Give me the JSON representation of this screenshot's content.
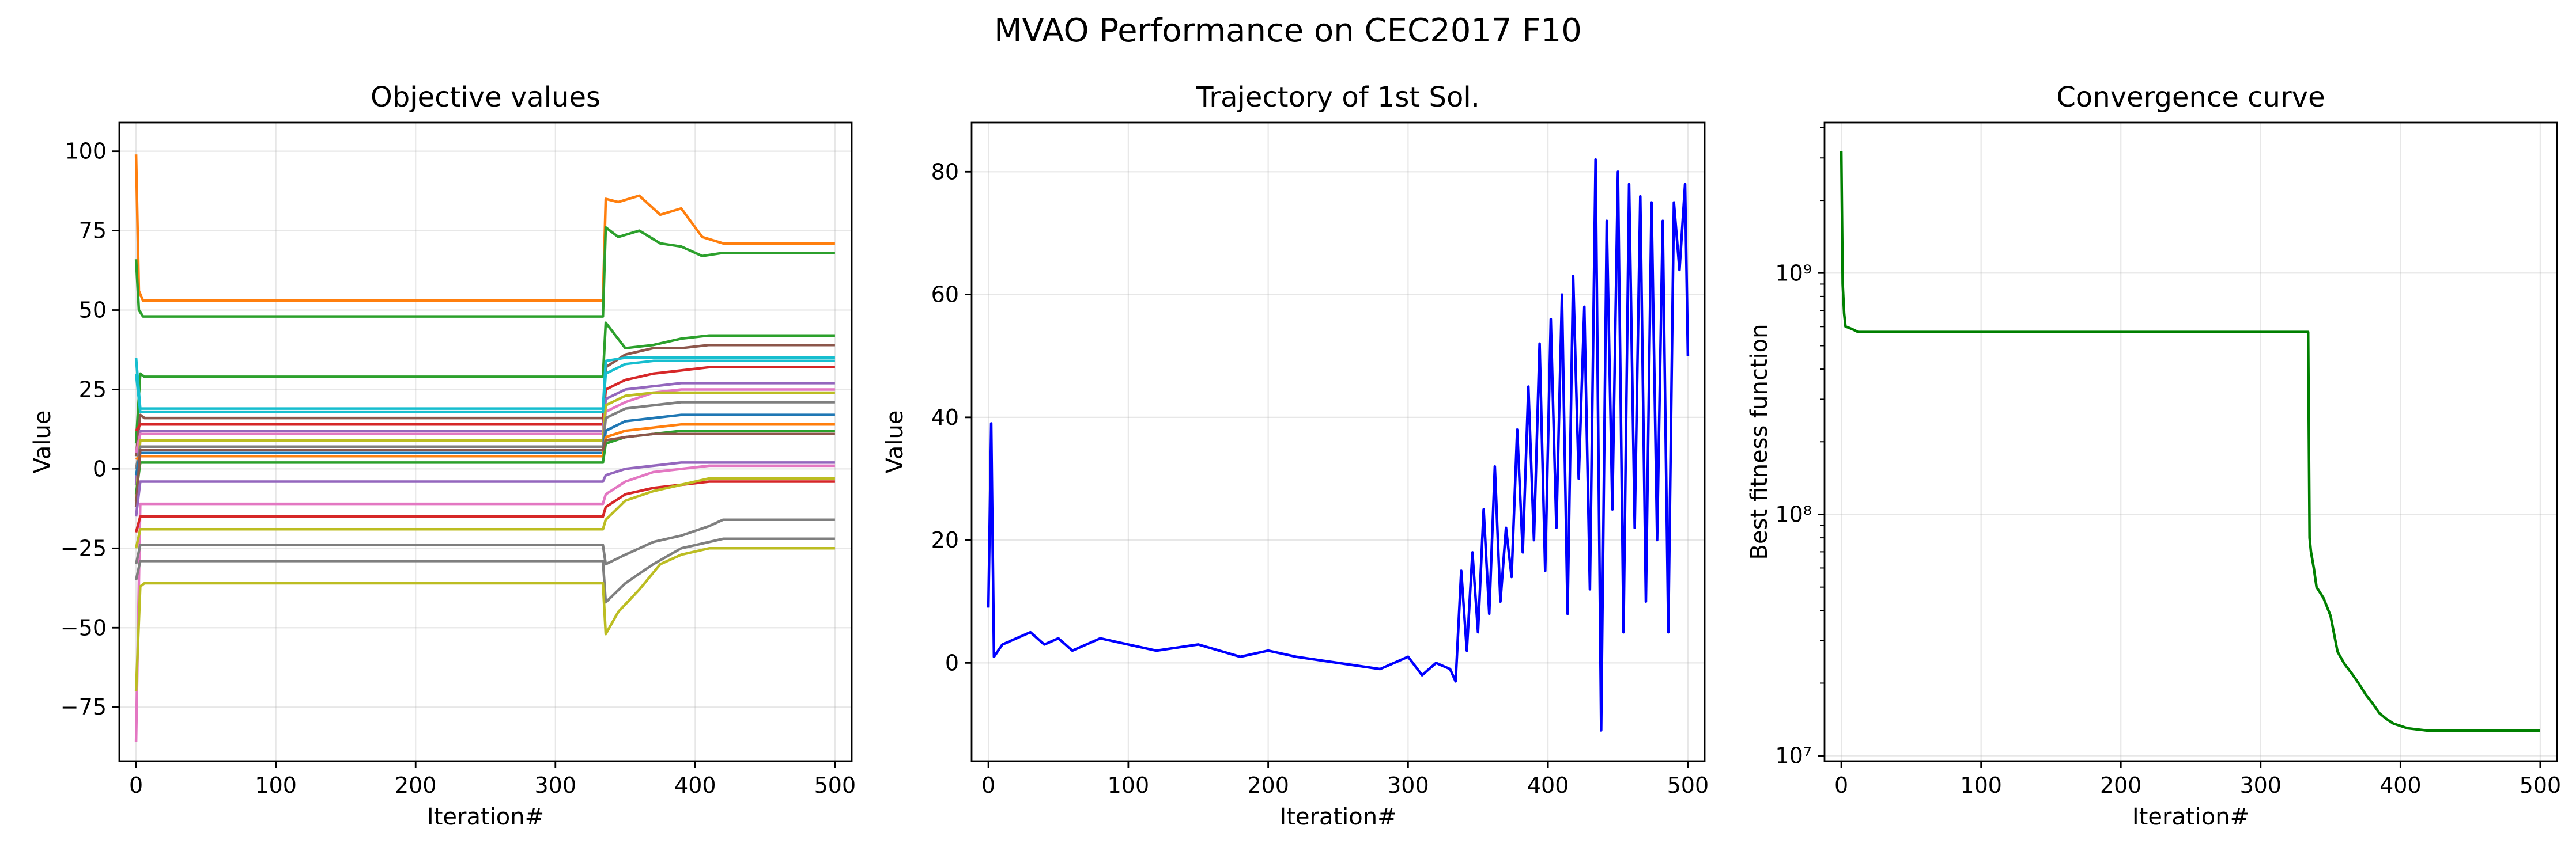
{
  "figure": {
    "title": "MVAO Performance on CEC2017 F10"
  },
  "chart_data": [
    {
      "type": "line",
      "title": "Objective values",
      "xlabel": "Iteration#",
      "ylabel": "Value",
      "xlim": [
        -12,
        512
      ],
      "ylim": [
        -92,
        109
      ],
      "xticks": [
        0,
        100,
        200,
        300,
        400,
        500
      ],
      "xtick_labels": [
        "0",
        "100",
        "200",
        "300",
        "400",
        "500"
      ],
      "yticks": [
        -75,
        -50,
        -25,
        0,
        25,
        50,
        75,
        100
      ],
      "ytick_labels": [
        "−75",
        "−50",
        "−25",
        "0",
        "25",
        "50",
        "75",
        "100"
      ],
      "grid": true,
      "legend": "none",
      "series": [
        {
          "color": "#ff7f0e",
          "x": [
            0,
            2,
            5,
            334,
            336,
            345,
            360,
            375,
            390,
            405,
            420,
            500
          ],
          "values": [
            99,
            56,
            53,
            53,
            85,
            84,
            86,
            80,
            82,
            73,
            71,
            71
          ]
        },
        {
          "color": "#2ca02c",
          "x": [
            0,
            2,
            5,
            334,
            336,
            345,
            360,
            375,
            390,
            405,
            420,
            500
          ],
          "values": [
            66,
            50,
            48,
            48,
            76,
            73,
            75,
            71,
            70,
            67,
            68,
            68
          ]
        },
        {
          "color": "#2ca02c",
          "x": [
            0,
            3,
            6,
            334,
            336,
            350,
            370,
            390,
            410,
            420,
            500
          ],
          "values": [
            8,
            30,
            29,
            29,
            46,
            38,
            39,
            41,
            42,
            42,
            42
          ]
        },
        {
          "color": "#8c564b",
          "x": [
            0,
            3,
            6,
            334,
            336,
            350,
            370,
            390,
            410,
            420,
            500
          ],
          "values": [
            4,
            17,
            16,
            16,
            32,
            36,
            38,
            38,
            39,
            39,
            39
          ]
        },
        {
          "color": "#17becf",
          "x": [
            0,
            3,
            6,
            334,
            336,
            350,
            370,
            390,
            410,
            420,
            500
          ],
          "values": [
            35,
            19,
            19,
            19,
            34,
            35,
            35,
            35,
            35,
            35,
            35
          ]
        },
        {
          "color": "#d62728",
          "x": [
            0,
            3,
            6,
            334,
            336,
            350,
            370,
            390,
            410,
            420,
            500
          ],
          "values": [
            12,
            14,
            14,
            14,
            25,
            28,
            30,
            31,
            32,
            32,
            32
          ]
        },
        {
          "color": "#9467bd",
          "x": [
            0,
            3,
            6,
            334,
            336,
            350,
            370,
            390,
            410,
            420,
            500
          ],
          "values": [
            -5,
            12,
            12,
            12,
            22,
            25,
            26,
            27,
            27,
            27,
            27
          ]
        },
        {
          "color": "#e377c2",
          "x": [
            0,
            3,
            6,
            334,
            336,
            350,
            370,
            390,
            410,
            420,
            500
          ],
          "values": [
            5,
            11,
            11,
            11,
            18,
            21,
            24,
            25,
            25,
            25,
            25
          ]
        },
        {
          "color": "#bcbd22",
          "x": [
            0,
            3,
            6,
            334,
            336,
            350,
            370,
            390,
            410,
            420,
            500
          ],
          "values": [
            -10,
            9,
            9,
            9,
            20,
            23,
            24,
            24,
            24,
            24,
            24
          ]
        },
        {
          "color": "#7f7f7f",
          "x": [
            0,
            3,
            6,
            334,
            336,
            350,
            370,
            390,
            410,
            420,
            500
          ],
          "values": [
            0,
            7,
            7,
            7,
            16,
            19,
            20,
            21,
            21,
            21,
            21
          ]
        },
        {
          "color": "#1f77b4",
          "x": [
            0,
            3,
            6,
            334,
            336,
            350,
            370,
            390,
            410,
            420,
            500
          ],
          "values": [
            -2,
            5,
            5,
            5,
            12,
            15,
            16,
            17,
            17,
            17,
            17
          ]
        },
        {
          "color": "#ff7f0e",
          "x": [
            0,
            3,
            6,
            334,
            336,
            350,
            370,
            390,
            410,
            420,
            500
          ],
          "values": [
            3,
            4,
            4,
            4,
            10,
            12,
            13,
            14,
            14,
            14,
            14
          ]
        },
        {
          "color": "#2ca02c",
          "x": [
            0,
            3,
            6,
            334,
            336,
            350,
            370,
            390,
            410,
            420,
            500
          ],
          "values": [
            -8,
            2,
            2,
            2,
            8,
            10,
            11,
            12,
            12,
            12,
            12
          ]
        },
        {
          "color": "#8c564b",
          "x": [
            0,
            3,
            6,
            334,
            336,
            350,
            370,
            390,
            410,
            420,
            500
          ],
          "values": [
            -12,
            6,
            6,
            6,
            9,
            10,
            11,
            11,
            11,
            11,
            11
          ]
        },
        {
          "color": "#9467bd",
          "x": [
            0,
            3,
            6,
            334,
            336,
            350,
            370,
            390,
            410,
            420,
            500
          ],
          "values": [
            -15,
            -4,
            -4,
            -4,
            -2,
            0,
            1,
            2,
            2,
            2,
            2
          ]
        },
        {
          "color": "#e377c2",
          "x": [
            0,
            3,
            6,
            334,
            336,
            350,
            370,
            390,
            410,
            420,
            500
          ],
          "values": [
            -86,
            -11,
            -11,
            -11,
            -8,
            -4,
            -1,
            0,
            1,
            1,
            1
          ]
        },
        {
          "color": "#d62728",
          "x": [
            0,
            3,
            6,
            334,
            336,
            350,
            370,
            390,
            410,
            420,
            500
          ],
          "values": [
            -20,
            -15,
            -15,
            -15,
            -12,
            -8,
            -6,
            -5,
            -4,
            -4,
            -4
          ]
        },
        {
          "color": "#bcbd22",
          "x": [
            0,
            3,
            6,
            334,
            336,
            350,
            370,
            390,
            410,
            420,
            500
          ],
          "values": [
            -25,
            -19,
            -19,
            -19,
            -16,
            -10,
            -7,
            -5,
            -3,
            -3,
            -3
          ]
        },
        {
          "color": "#7f7f7f",
          "x": [
            0,
            3,
            6,
            334,
            336,
            350,
            370,
            390,
            410,
            420,
            500
          ],
          "values": [
            -30,
            -24,
            -24,
            -24,
            -30,
            -27,
            -23,
            -21,
            -18,
            -16,
            -16
          ]
        },
        {
          "color": "#7f7f7f",
          "x": [
            0,
            3,
            6,
            334,
            336,
            350,
            370,
            390,
            410,
            420,
            500
          ],
          "values": [
            -35,
            -29,
            -29,
            -29,
            -42,
            -36,
            -30,
            -25,
            -23,
            -22,
            -22
          ]
        },
        {
          "color": "#bcbd22",
          "x": [
            0,
            3,
            6,
            334,
            336,
            345,
            360,
            375,
            390,
            410,
            420,
            500
          ],
          "values": [
            -70,
            -37,
            -36,
            -36,
            -52,
            -45,
            -38,
            -30,
            -27,
            -25,
            -25,
            -25
          ]
        },
        {
          "color": "#17becf",
          "x": [
            0,
            3,
            6,
            334,
            336,
            350,
            370,
            390,
            410,
            420,
            500
          ],
          "values": [
            30,
            18,
            18,
            18,
            30,
            33,
            34,
            34,
            34,
            34,
            34
          ]
        }
      ]
    },
    {
      "type": "line",
      "title": "Trajectory of 1st Sol.",
      "xlabel": "Iteration#",
      "ylabel": "Value",
      "xlim": [
        -12,
        512
      ],
      "ylim": [
        -16,
        88
      ],
      "xticks": [
        0,
        100,
        200,
        300,
        400,
        500
      ],
      "xtick_labels": [
        "0",
        "100",
        "200",
        "300",
        "400",
        "500"
      ],
      "yticks": [
        0,
        20,
        40,
        60,
        80
      ],
      "ytick_labels": [
        "0",
        "20",
        "40",
        "60",
        "80"
      ],
      "grid": true,
      "legend": "none",
      "series": [
        {
          "color": "#0000ff",
          "x": [
            0,
            2,
            4,
            10,
            20,
            30,
            40,
            50,
            60,
            80,
            100,
            120,
            150,
            180,
            200,
            220,
            250,
            280,
            300,
            310,
            320,
            330,
            334,
            338,
            342,
            346,
            350,
            354,
            358,
            362,
            366,
            370,
            374,
            378,
            382,
            386,
            390,
            394,
            398,
            402,
            406,
            410,
            414,
            418,
            422,
            426,
            430,
            434,
            438,
            442,
            446,
            450,
            454,
            458,
            462,
            466,
            470,
            474,
            478,
            482,
            486,
            490,
            494,
            498,
            500
          ],
          "values": [
            9,
            39,
            1,
            3,
            4,
            5,
            3,
            4,
            2,
            4,
            3,
            2,
            3,
            1,
            2,
            1,
            0,
            -1,
            1,
            -2,
            0,
            -1,
            -3,
            15,
            2,
            18,
            5,
            25,
            8,
            32,
            10,
            22,
            14,
            38,
            18,
            45,
            20,
            52,
            15,
            56,
            22,
            60,
            8,
            63,
            30,
            58,
            12,
            82,
            -11,
            72,
            25,
            80,
            5,
            78,
            22,
            76,
            10,
            75,
            20,
            72,
            5,
            75,
            64,
            78,
            50
          ]
        }
      ]
    },
    {
      "type": "line",
      "title": "Convergence curve",
      "xlabel": "Iteration#",
      "ylabel": "Best fitness function",
      "xlim": [
        -12,
        512
      ],
      "ylim": [
        9500000,
        4200000000
      ],
      "yscale": "log",
      "xticks": [
        0,
        100,
        200,
        300,
        400,
        500
      ],
      "xtick_labels": [
        "0",
        "100",
        "200",
        "300",
        "400",
        "500"
      ],
      "yticks": [
        10000000,
        100000000,
        1000000000
      ],
      "ytick_labels": [
        "10^7",
        "10^8",
        "10^9"
      ],
      "grid": true,
      "legend": "none",
      "series": [
        {
          "color": "#008000",
          "x": [
            0,
            1,
            2,
            3,
            5,
            8,
            12,
            20,
            100,
            200,
            300,
            334,
            335,
            336,
            338,
            340,
            345,
            350,
            355,
            360,
            365,
            370,
            375,
            380,
            385,
            390,
            395,
            400,
            405,
            410,
            415,
            420,
            430,
            450,
            500
          ],
          "values": [
            3200000000,
            900000000,
            680000000,
            600000000,
            595000000,
            585000000,
            570000000,
            570000000,
            570000000,
            570000000,
            570000000,
            570000000,
            80000000,
            70000000,
            60000000,
            50000000,
            45000000,
            38000000,
            27000000,
            24000000,
            22000000,
            20000000,
            18000000,
            16500000,
            15000000,
            14200000,
            13600000,
            13300000,
            13000000,
            12900000,
            12800000,
            12700000,
            12700000,
            12700000,
            12700000
          ]
        }
      ]
    }
  ]
}
